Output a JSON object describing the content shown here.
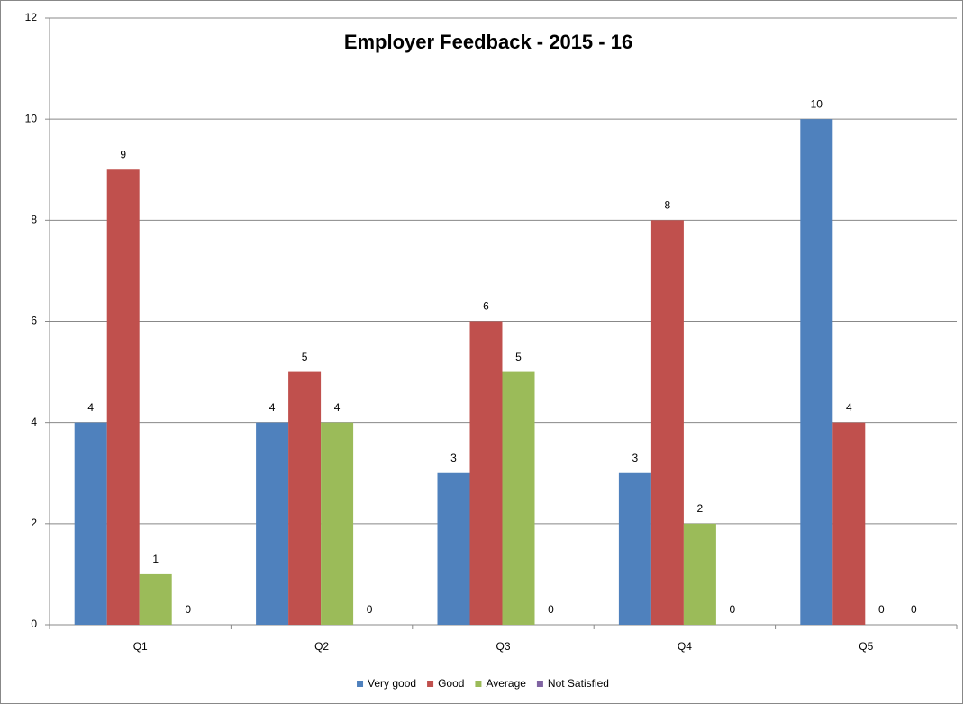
{
  "chart_data": {
    "type": "bar",
    "title": "Employer Feedback - 2015 - 16",
    "categories": [
      "Q1",
      "Q2",
      "Q3",
      "Q4",
      "Q5"
    ],
    "series": [
      {
        "name": "Very good",
        "color": "#4f81bd",
        "values": [
          4,
          4,
          3,
          3,
          10
        ]
      },
      {
        "name": "Good",
        "color": "#c0504d",
        "values": [
          9,
          5,
          6,
          8,
          4
        ]
      },
      {
        "name": "Average",
        "color": "#9bbb59",
        "values": [
          1,
          4,
          5,
          2,
          0
        ]
      },
      {
        "name": "Not Satisfied",
        "color": "#8064a2",
        "values": [
          0,
          0,
          0,
          0,
          0
        ]
      }
    ],
    "ylim": [
      0,
      12
    ],
    "yticks": [
      0,
      2,
      4,
      6,
      8,
      10,
      12
    ],
    "grid": true,
    "legend": "bottom"
  }
}
